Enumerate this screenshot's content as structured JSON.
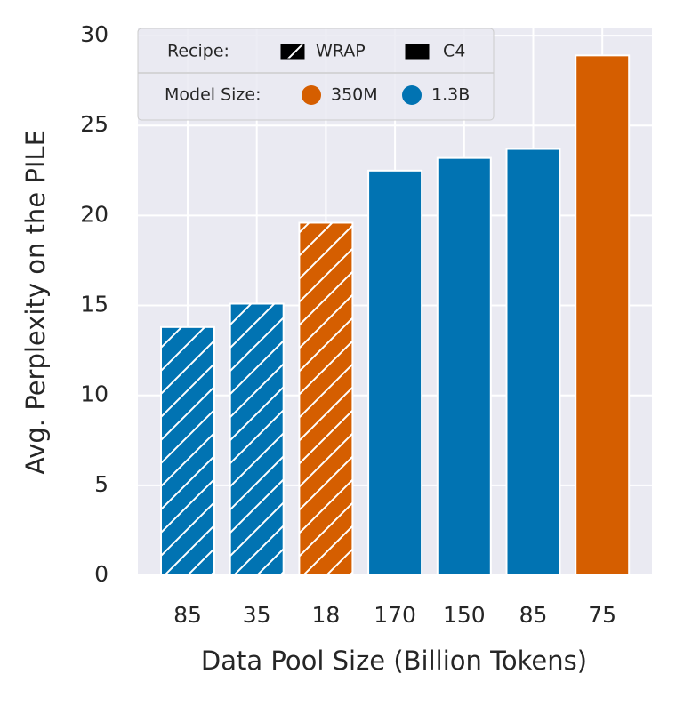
{
  "chart_data": {
    "type": "bar",
    "xlabel": "Data Pool Size (Billion Tokens)",
    "ylabel": "Avg. Perplexity on the PILE",
    "categories": [
      "85",
      "35",
      "18",
      "170",
      "150",
      "85",
      "75"
    ],
    "values": [
      13.8,
      15.1,
      19.6,
      22.5,
      23.2,
      23.7,
      28.9
    ],
    "colors": [
      "#0173b2",
      "#0173b2",
      "#d55e00",
      "#0173b2",
      "#0173b2",
      "#0173b2",
      "#d55e00"
    ],
    "hatch": [
      true,
      true,
      true,
      false,
      false,
      false,
      false
    ],
    "ylim": [
      0,
      30.4
    ],
    "yticks": [
      0,
      5,
      10,
      15,
      20,
      25,
      30
    ],
    "grid": true,
    "legend": {
      "recipe": {
        "title": "Recipe:",
        "items": [
          {
            "name": "WRAP",
            "hatch": true
          },
          {
            "name": "C4",
            "hatch": false
          }
        ]
      },
      "model_size": {
        "title": "Model Size:",
        "items": [
          {
            "name": "350M",
            "color": "#d55e00"
          },
          {
            "name": "1.3B",
            "color": "#0173b2"
          }
        ]
      }
    }
  }
}
